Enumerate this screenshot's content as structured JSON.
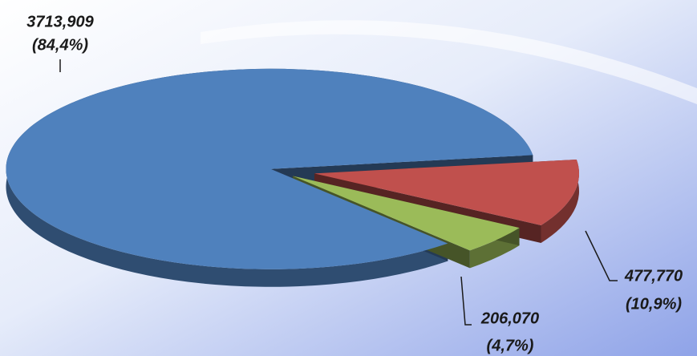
{
  "chart_data": {
    "type": "pie",
    "values": [
      3713.909,
      477.77,
      206.07
    ],
    "value_labels": [
      "3713,909",
      "477,770",
      "206,070"
    ],
    "percentages": [
      84.4,
      10.9,
      4.7
    ],
    "percentage_labels": [
      "(84,4%)",
      "(10,9%)",
      "(4,7%)"
    ],
    "colors": [
      "#4f81bd",
      "#c0504d",
      "#9bbb59"
    ]
  }
}
